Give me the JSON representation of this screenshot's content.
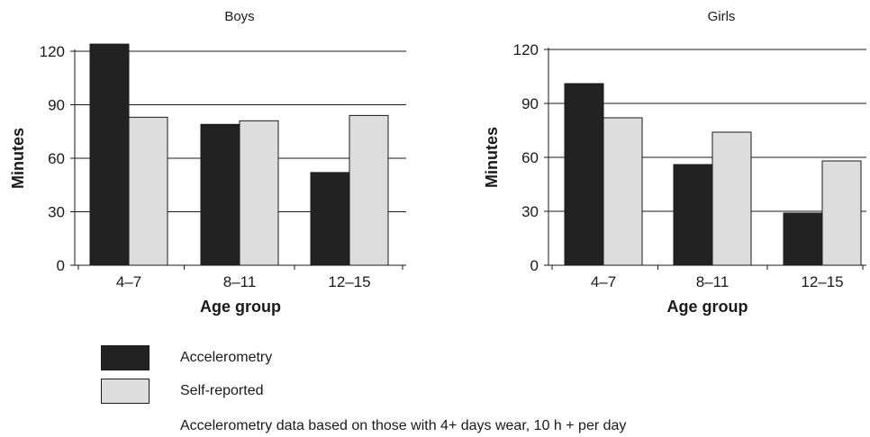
{
  "chart_data": [
    {
      "type": "bar",
      "title": "Boys",
      "xlabel": "Age group",
      "ylabel": "Minutes",
      "categories": [
        "4–7",
        "8–11",
        "12–15"
      ],
      "ylim": [
        0,
        120
      ],
      "yticks": [
        0,
        30,
        60,
        90,
        120
      ],
      "grid": true,
      "series": [
        {
          "name": "Accelerometry",
          "values": [
            124,
            79,
            52
          ]
        },
        {
          "name": "Self-reported",
          "values": [
            83,
            81,
            84
          ]
        }
      ]
    },
    {
      "type": "bar",
      "title": "Girls",
      "xlabel": "Age group",
      "ylabel": "Minutes",
      "categories": [
        "4–7",
        "8–11",
        "12–15"
      ],
      "ylim": [
        0,
        120
      ],
      "yticks": [
        0,
        30,
        60,
        90,
        120
      ],
      "grid": true,
      "series": [
        {
          "name": "Accelerometry",
          "values": [
            101,
            56,
            29
          ]
        },
        {
          "name": "Self-reported",
          "values": [
            82,
            74,
            58
          ]
        }
      ]
    }
  ],
  "legend": {
    "items": [
      {
        "label": "Accelerometry",
        "color": "#222222"
      },
      {
        "label": "Self-reported",
        "color": "#dddddd"
      }
    ],
    "note": "Accelerometry data based on those with 4+ days wear, 10 h + per day"
  }
}
